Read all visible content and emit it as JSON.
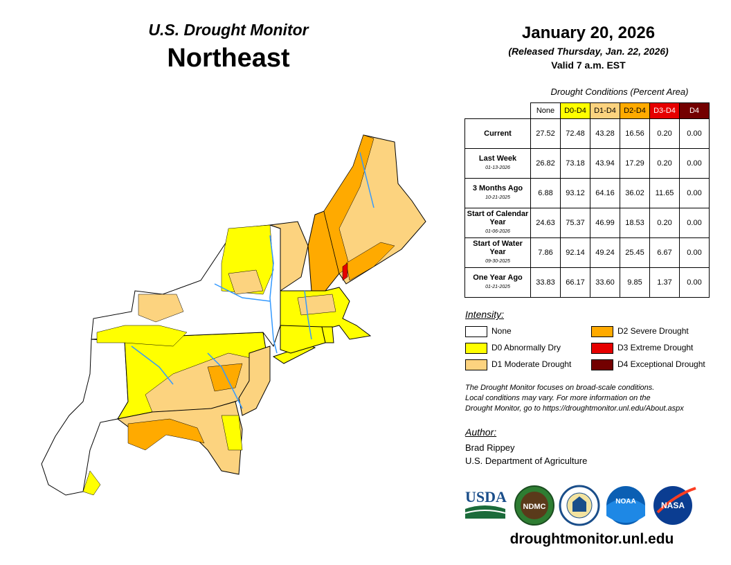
{
  "header": {
    "title": "U.S. Drought Monitor",
    "region": "Northeast",
    "date": "January 20, 2026",
    "released": "(Released Thursday, Jan. 22, 2026)",
    "valid": "Valid 7 a.m. EST"
  },
  "table": {
    "title": "Drought Conditions (Percent Area)",
    "columns": [
      "None",
      "D0-D4",
      "D1-D4",
      "D2-D4",
      "D3-D4",
      "D4"
    ],
    "column_colors": [
      "#ffffff",
      "#ffff00",
      "#fcd37f",
      "#ffaa00",
      "#e60000",
      "#730000"
    ],
    "rows": [
      {
        "label": "Current",
        "date": "",
        "values": [
          "27.52",
          "72.48",
          "43.28",
          "16.56",
          "0.20",
          "0.00"
        ]
      },
      {
        "label": "Last Week",
        "date": "01-13-2026",
        "values": [
          "26.82",
          "73.18",
          "43.94",
          "17.29",
          "0.20",
          "0.00"
        ]
      },
      {
        "label": "3 Months Ago",
        "date": "10-21-2025",
        "values": [
          "6.88",
          "93.12",
          "64.16",
          "36.02",
          "11.65",
          "0.00"
        ]
      },
      {
        "label": "Start of Calendar Year",
        "date": "01-06-2026",
        "values": [
          "24.63",
          "75.37",
          "46.99",
          "18.53",
          "0.20",
          "0.00"
        ]
      },
      {
        "label": "Start of Water Year",
        "date": "09-30-2025",
        "values": [
          "7.86",
          "92.14",
          "49.24",
          "25.45",
          "6.67",
          "0.00"
        ]
      },
      {
        "label": "One Year Ago",
        "date": "01-21-2025",
        "values": [
          "33.83",
          "66.17",
          "33.60",
          "9.85",
          "1.37",
          "0.00"
        ]
      }
    ]
  },
  "legend": {
    "title": "Intensity:",
    "items": [
      {
        "label": "None",
        "color": "#ffffff"
      },
      {
        "label": "D0 Abnormally Dry",
        "color": "#ffff00"
      },
      {
        "label": "D1 Moderate Drought",
        "color": "#fcd37f"
      },
      {
        "label": "D2 Severe Drought",
        "color": "#ffaa00"
      },
      {
        "label": "D3 Extreme Drought",
        "color": "#e60000"
      },
      {
        "label": "D4 Exceptional Drought",
        "color": "#730000"
      }
    ]
  },
  "note": {
    "line1": "The Drought Monitor focuses on broad-scale conditions.",
    "line2": "Local conditions may vary. For more information on the",
    "line3": "Drought Monitor, go to https://droughtmonitor.unl.edu/About.aspx"
  },
  "author": {
    "heading": "Author:",
    "name": "Brad Rippey",
    "org": "U.S. Department of Agriculture"
  },
  "logos": {
    "usda": "USDA",
    "ndmc": "NDMC",
    "noaa": "NOAA",
    "nasa": "NASA"
  },
  "website": "droughtmonitor.unl.edu"
}
